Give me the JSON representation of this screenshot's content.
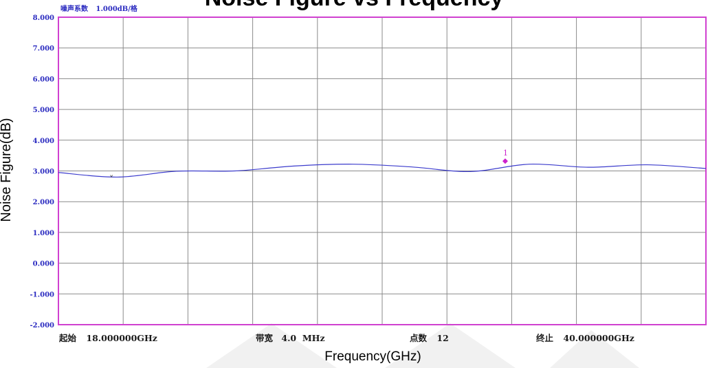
{
  "chart_data": {
    "type": "line",
    "title": "Noise Figure vs Frequency",
    "xlabel": "Frequency(GHz)",
    "ylabel": "Noise Figure(dB)",
    "ylim": [
      -2.0,
      8.0
    ],
    "xlim": [
      18.0,
      40.0
    ],
    "y_ticks": [
      "8.000",
      "7.000",
      "6.000",
      "5.000",
      "4.000",
      "3.000",
      "2.000",
      "1.000",
      "0.000",
      "-1.000",
      "-2.000"
    ],
    "grid": true,
    "series": [
      {
        "color": "#3b3bcc",
        "x": [
          18.0,
          20.0,
          22.0,
          24.0,
          26.0,
          28.0,
          30.0,
          32.0,
          34.0,
          36.0,
          38.0,
          40.0
        ],
        "y": [
          2.95,
          2.8,
          2.99,
          3.0,
          3.16,
          3.22,
          3.13,
          2.98,
          3.22,
          3.12,
          3.2,
          3.08
        ]
      }
    ],
    "markers": [
      {
        "label": "1",
        "x": 33.18,
        "y": 3.32,
        "color": "#cc22cc"
      },
      {
        "label": "˅",
        "x": 19.8,
        "y": 2.78,
        "color": "#333333"
      }
    ],
    "header": {
      "name": "噪声系数",
      "scale": "1.000dB/格"
    },
    "footer": {
      "start_label": "起始",
      "start_value": "18.000000GHz",
      "bw_label": "带宽",
      "bw_value": "4.0  MHz",
      "points_label": "点数",
      "points_value": "12",
      "stop_label": "终止",
      "stop_value": "40.000000GHz"
    }
  }
}
